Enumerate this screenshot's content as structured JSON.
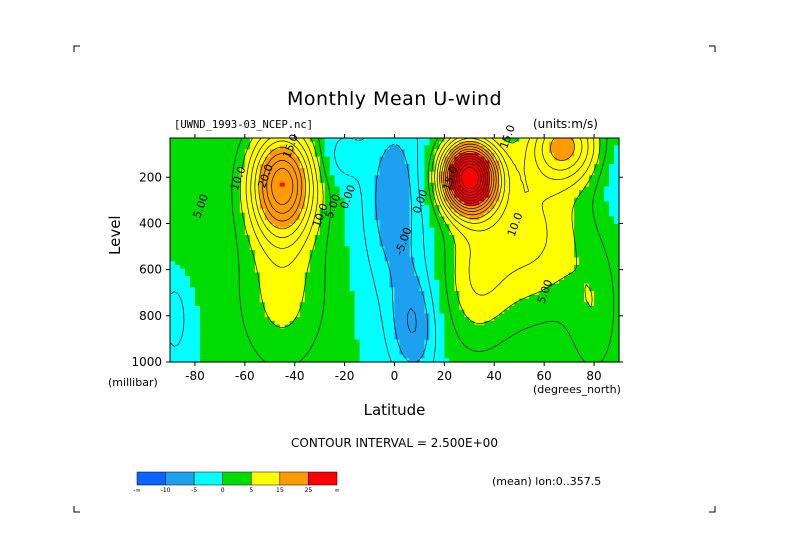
{
  "chart_data": {
    "type": "heatmap",
    "title": "Monthly Mean U-wind",
    "dataset_label": "[UWND_1993-03_NCEP.nc]",
    "units_label": "(units:m/s)",
    "xlabel": "Latitude",
    "x_unit_label": "(degrees_north)",
    "ylabel": "Level",
    "y_unit_label": "(millibar)",
    "x_ticks": [
      "-80",
      "-60",
      "-40",
      "-20",
      "0",
      "20",
      "40",
      "60",
      "80"
    ],
    "x_tick_values": [
      -80,
      -60,
      -40,
      -20,
      0,
      20,
      40,
      60,
      80
    ],
    "y_ticks": [
      "200",
      "400",
      "600",
      "800",
      "1000"
    ],
    "y_tick_values": [
      200,
      400,
      600,
      800,
      1000
    ],
    "xlim": [
      -90,
      90
    ],
    "ylim": [
      1000,
      30
    ],
    "contour_interval_text": "CONTOUR INTERVAL = 2.500E+00",
    "mean_label": "(mean) lon:0..357.5",
    "contour_labels": [
      {
        "text": "15.0",
        "lat": -42,
        "lev": 120
      },
      {
        "text": "20.0",
        "lat": -52,
        "lev": 250
      },
      {
        "text": "10.0",
        "lat": -63,
        "lev": 260
      },
      {
        "text": "5.00",
        "lat": -78,
        "lev": 380
      },
      {
        "text": "10.0",
        "lat": -30,
        "lev": 420
      },
      {
        "text": "5.00",
        "lat": -25,
        "lev": 380
      },
      {
        "text": "0.00",
        "lat": -19,
        "lev": 340
      },
      {
        "text": "15.0",
        "lat": 22,
        "lev": 260
      },
      {
        "text": "0.00",
        "lat": 10,
        "lev": 360
      },
      {
        "text": "-5.00",
        "lat": 3,
        "lev": 540
      },
      {
        "text": "10.0",
        "lat": 48,
        "lev": 460
      },
      {
        "text": "5.00",
        "lat": 60,
        "lev": 750
      },
      {
        "text": "15.0",
        "lat": 45,
        "lev": 80
      }
    ],
    "colorbar": {
      "colors": [
        "#0a64ff",
        "#1ea0f0",
        "#00ffff",
        "#00dc00",
        "#ffff00",
        "#ff9b00",
        "#ff0000"
      ],
      "tick_labels": [
        "-∞",
        "-10",
        "-5",
        "0",
        "5",
        "15",
        "25",
        "∞"
      ]
    },
    "bands": {
      "levels": [
        -10,
        -5,
        0,
        5,
        15,
        25
      ],
      "colors": [
        "#0a64ff",
        "#1ea0f0",
        "#00ffff",
        "#00dc00",
        "#ffff00",
        "#ff9b00",
        "#ff0000"
      ]
    }
  }
}
